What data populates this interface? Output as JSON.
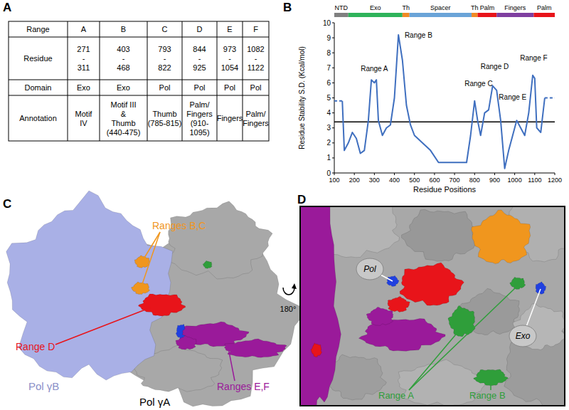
{
  "panels": [
    "A",
    "B",
    "C",
    "D"
  ],
  "table": {
    "header": [
      "Range",
      "A",
      "B",
      "C",
      "D",
      "E",
      "F"
    ],
    "rows": [
      [
        [
          "Residue"
        ],
        [
          "271",
          "-",
          "311"
        ],
        [
          "403",
          "-",
          "468"
        ],
        [
          "793",
          "-",
          "822"
        ],
        [
          "844",
          "-",
          "925"
        ],
        [
          "973",
          "-",
          "1054"
        ],
        [
          "1082",
          "-",
          "1122"
        ]
      ],
      [
        [
          "Domain"
        ],
        [
          "Exo"
        ],
        [
          "Exo"
        ],
        [
          "Pol"
        ],
        [
          "Pol"
        ],
        [
          "Pol"
        ],
        [
          "Pol"
        ]
      ],
      [
        [
          "Annotation"
        ],
        [
          "Motif",
          "IV"
        ],
        [
          "Motif III",
          "&",
          "Thumb",
          "(440-475)"
        ],
        [
          "Thumb",
          "(785-815)"
        ],
        [
          "Palm/",
          "Fingers",
          "(910-",
          "1095)"
        ],
        [
          "Fingers"
        ],
        [
          "Palm/",
          "Fingers"
        ]
      ]
    ]
  },
  "chart_data": {
    "type": "line",
    "x_label": "Residue Positions",
    "y_label": "Residue Stability S.D. (Kcal/mol)",
    "xlim": [
      100,
      1200
    ],
    "xticks": [
      100,
      200,
      300,
      400,
      500,
      600,
      700,
      800,
      900,
      1000,
      1100,
      1200
    ],
    "ylim": [
      0,
      10
    ],
    "yticks": [
      0,
      1,
      2,
      3,
      4,
      5,
      6,
      7,
      8,
      9,
      10
    ],
    "threshold": 3.4,
    "domains": [
      {
        "label": "NTD",
        "start": 100,
        "end": 170,
        "color": "#808080"
      },
      {
        "label": "Exo",
        "start": 170,
        "end": 440,
        "color": "#2eb35a"
      },
      {
        "label": "Th",
        "start": 440,
        "end": 475,
        "color": "#f08a24"
      },
      {
        "label": "Spacer",
        "start": 475,
        "end": 785,
        "color": "#6aa4d8"
      },
      {
        "label": "Th",
        "start": 785,
        "end": 815,
        "color": "#f08a24"
      },
      {
        "label": "Palm",
        "start": 815,
        "end": 910,
        "color": "#e8141a"
      },
      {
        "label": "Fingers",
        "start": 910,
        "end": 1095,
        "color": "#7f3fa0"
      },
      {
        "label": "Palm",
        "start": 1095,
        "end": 1200,
        "color": "#e8141a"
      }
    ],
    "series": [
      {
        "color": "#3f6fbf",
        "line_style": "solid",
        "x": [
          140,
          150,
          170,
          190,
          210,
          230,
          250,
          270,
          285,
          300,
          310,
          320,
          340,
          360,
          380,
          400,
          420,
          440,
          460,
          480,
          500,
          540,
          580,
          620,
          700,
          760,
          780,
          800,
          815,
          830,
          850,
          870,
          890,
          910,
          930,
          950,
          970,
          990,
          1010,
          1030,
          1050,
          1070,
          1090,
          1100,
          1110,
          1130,
          1150
        ],
        "values": [
          4.8,
          1.5,
          2.0,
          2.7,
          2.3,
          1.3,
          1.5,
          3.5,
          6.2,
          6.0,
          6.2,
          3.5,
          2.5,
          3.0,
          3.2,
          5.0,
          9.2,
          7.5,
          4.5,
          3.2,
          2.5,
          2.0,
          1.5,
          0.7,
          0.7,
          0.7,
          2.5,
          4.8,
          3.5,
          2.5,
          4.0,
          4.2,
          5.8,
          5.5,
          3.5,
          0.3,
          1.5,
          2.5,
          3.5,
          3.0,
          2.5,
          4.0,
          6.5,
          6.3,
          3.0,
          2.7,
          5.0
        ]
      },
      {
        "color": "#3f6fbf",
        "line_style": "dashed",
        "x": [
          100,
          140
        ],
        "values": [
          4.8,
          4.8
        ]
      },
      {
        "color": "#3f6fbf",
        "line_style": "dashed",
        "x": [
          1150,
          1200
        ],
        "values": [
          5.0,
          5.0
        ]
      }
    ],
    "annotations": [
      {
        "text": "Range A",
        "x": 300,
        "y": 6.8
      },
      {
        "text": "Range B",
        "x": 520,
        "y": 9.0
      },
      {
        "text": "Range C",
        "x": 820,
        "y": 5.8
      },
      {
        "text": "Range D",
        "x": 900,
        "y": 6.9
      },
      {
        "text": "Range E",
        "x": 990,
        "y": 4.9
      },
      {
        "text": "Range F",
        "x": 1095,
        "y": 7.5
      }
    ]
  },
  "structures": {
    "left": {
      "labels": [
        {
          "text": "Pol γB",
          "color": "#a9b0e6"
        },
        {
          "text": "Pol γA",
          "color": "#000000"
        },
        {
          "text": "Ranges B,C",
          "color": "#f0961e"
        },
        {
          "text": "Range D",
          "color": "#e8141a"
        },
        {
          "text": "Ranges E,F",
          "color": "#9a1a9a"
        }
      ]
    },
    "right": {
      "rotation": "180°",
      "sites": [
        "Pol",
        "Exo"
      ],
      "labels": [
        {
          "text": "Range A",
          "color": "#2f9e3a"
        },
        {
          "text": "Range B",
          "color": "#2f9e3a"
        }
      ]
    }
  }
}
